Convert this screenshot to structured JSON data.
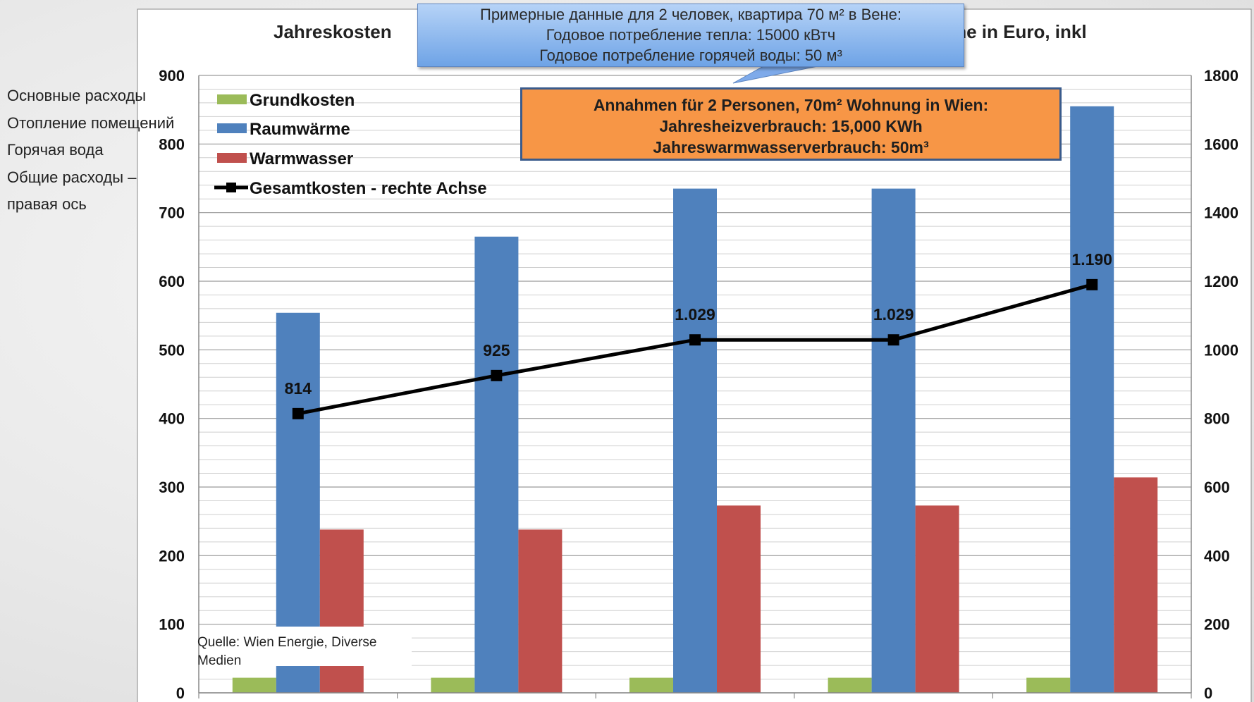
{
  "side_labels": [
    "Основные расходы",
    "Отопление помещений",
    "Горячая вода",
    "Общие расходы –",
    "правая ось"
  ],
  "callout": {
    "lines": [
      "Примерные данные для 2 человек, квартира 70 м² в Вене:",
      "Годовое потребление тепла: 15000 кВтч",
      "Годовое потребление горячей воды: 50 м³"
    ]
  },
  "annotation": {
    "lines": [
      "Annahmen für 2 Personen, 70m² Wohnung in Wien:",
      "Jahresheizverbrauch: 15,000 KWh",
      "Jahreswarmwasserverbrauch: 50m³"
    ]
  },
  "source_note": "Quelle: Wien Energie, Diverse Medien",
  "colors": {
    "grundkosten": "#9bbb59",
    "raumwaerme": "#4f81bd",
    "warmwasser": "#c0504d",
    "gesamt": "#000000",
    "callout": "#8fb8ee",
    "annotation": "#f79646"
  },
  "chart_data": {
    "type": "bar",
    "title_left": "Jahreskosten",
    "title_right": "me in Euro, inkl",
    "categories": [
      "",
      "",
      "",
      "",
      ""
    ],
    "ylim": [
      0,
      900
    ],
    "y_ticks": [
      "0",
      "100",
      "200",
      "300",
      "400",
      "500",
      "600",
      "700",
      "800",
      "900"
    ],
    "y2lim": [
      0,
      1800
    ],
    "y2_ticks": [
      "0",
      "200",
      "400",
      "600",
      "800",
      "1000",
      "1200",
      "1400",
      "1600",
      "1800"
    ],
    "grid": true,
    "legend_position": "top-left",
    "series": [
      {
        "name": "Grundkosten",
        "type": "bar",
        "axis": "left",
        "color": "#9bbb59",
        "values": [
          22,
          22,
          22,
          22,
          22
        ]
      },
      {
        "name": "Raumwärme",
        "type": "bar",
        "axis": "left",
        "color": "#4f81bd",
        "values": [
          554,
          665,
          735,
          735,
          855
        ]
      },
      {
        "name": "Warmwasser",
        "type": "bar",
        "axis": "left",
        "color": "#c0504d",
        "values": [
          238,
          238,
          273,
          273,
          314
        ]
      },
      {
        "name": "Gesamtkosten - rechte Achse",
        "type": "line",
        "axis": "right",
        "color": "#000000",
        "values": [
          814,
          925,
          1029,
          1029,
          1190
        ],
        "labels": [
          "814",
          "925",
          "1.029",
          "1.029",
          "1.190"
        ]
      }
    ]
  }
}
